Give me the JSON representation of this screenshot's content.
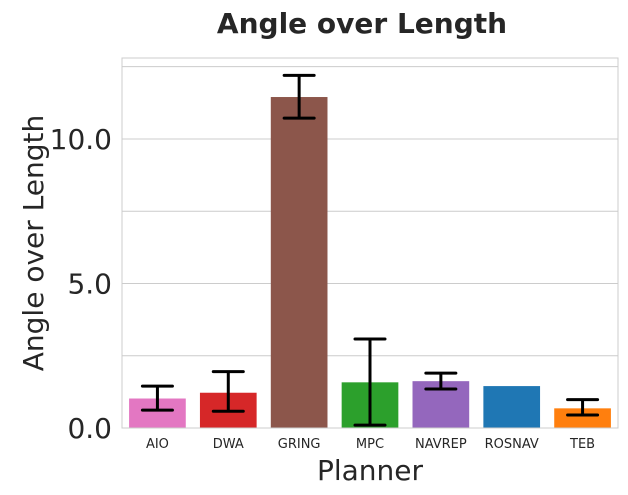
{
  "chart_data": {
    "type": "bar",
    "title": "Angle over Length",
    "xlabel": "Planner",
    "ylabel": "Angle over Length",
    "categories": [
      "AIO",
      "DWA",
      "GRING",
      "MPC",
      "NAVREP",
      "ROSNAV",
      "TEB"
    ],
    "values": [
      1.02,
      1.22,
      11.45,
      1.58,
      1.62,
      1.45,
      0.68
    ],
    "error_low": [
      0.62,
      0.58,
      10.72,
      0.1,
      1.35,
      1.45,
      0.45
    ],
    "error_high": [
      1.45,
      1.95,
      12.2,
      3.08,
      1.9,
      1.45,
      0.98
    ],
    "colors": [
      "#e377c2",
      "#d62728",
      "#8c564b",
      "#2ca02c",
      "#9467bd",
      "#1f77b4",
      "#ff7f0e"
    ],
    "ylim": [
      0,
      12.8
    ],
    "yticks": [
      "0.0",
      "5.0",
      "10.0"
    ],
    "ytick_values": [
      0,
      5,
      10
    ],
    "grid_values": [
      0,
      2.5,
      5,
      7.5,
      10,
      12.5
    ],
    "grid": true,
    "style": "whitegrid"
  }
}
